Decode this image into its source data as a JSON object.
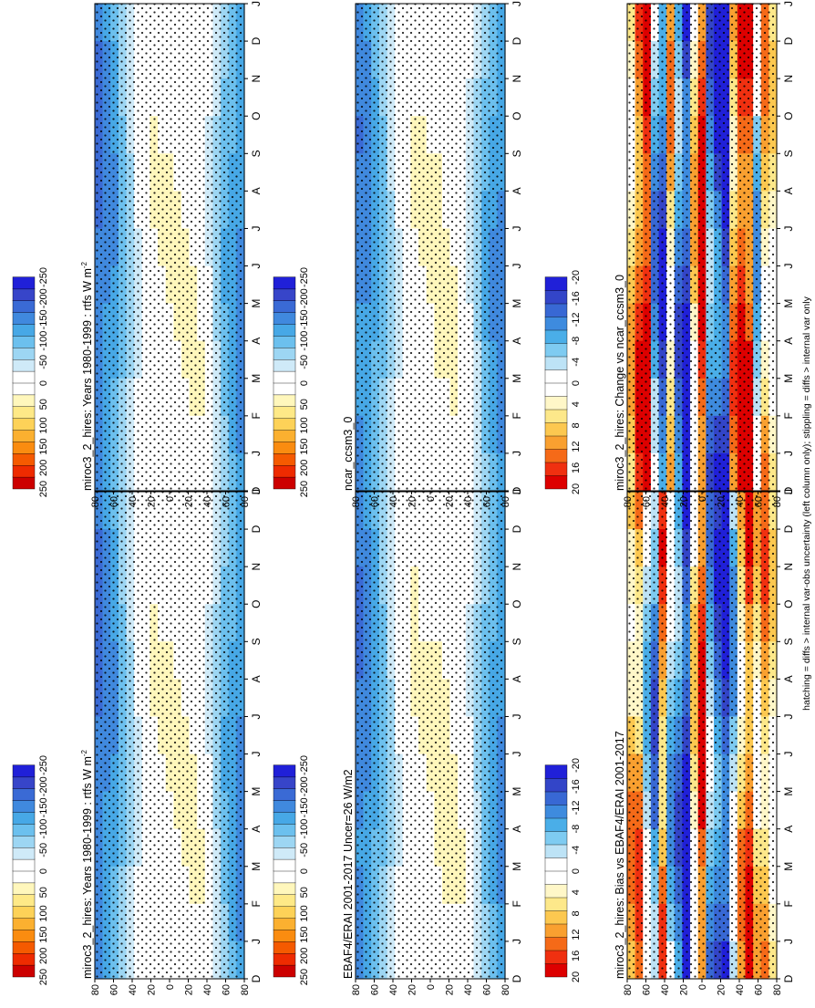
{
  "figure": {
    "footnote": "hatching = diffs > internal var-obs uncertainty (left column only); stippling = diffs > internal var only"
  },
  "chart_data": [
    {
      "type": "heatmap",
      "title": "miroc3_2_hires: Years 1980-1999 : rtfs W m",
      "title_sup": "-2",
      "months": [
        "D",
        "J",
        "F",
        "M",
        "A",
        "M",
        "J",
        "J",
        "A",
        "S",
        "O",
        "N",
        "D",
        "J"
      ],
      "lat_ticks": [
        "80",
        "60",
        "40",
        "20",
        "0",
        "20",
        "40",
        "60",
        "80"
      ],
      "colorbar": {
        "labels": [
          "250",
          "200",
          "150",
          "100",
          "50",
          "0",
          "-50",
          "-100",
          "-150",
          "-200",
          "-250"
        ],
        "colors": [
          "#cc0000",
          "#ee2b00",
          "#f55a00",
          "#fa8c10",
          "#fbb030",
          "#fdd258",
          "#fee987",
          "#fff7bc",
          "#ffffff",
          "#ffffff",
          "#cfeaf8",
          "#9dd6f3",
          "#6cc0ee",
          "#47a8e6",
          "#4089de",
          "#3a6ad5",
          "#3745c9",
          "#2020d8"
        ]
      },
      "latitude_profile": [
        -160,
        -145,
        -125,
        -90,
        -55,
        -20,
        5,
        15,
        15,
        18,
        22,
        22,
        18,
        12,
        -20,
        -55,
        -95,
        -120,
        -140
      ]
    },
    {
      "type": "heatmap",
      "title": "miroc3_2_hires: Years 1980-1999 : rtfs W m",
      "title_sup": "-2",
      "months": [
        "D",
        "J",
        "F",
        "M",
        "A",
        "M",
        "J",
        "J",
        "A",
        "S",
        "O",
        "N",
        "D",
        "J"
      ],
      "lat_ticks": [
        "80",
        "60",
        "40",
        "20",
        "0",
        "20",
        "40",
        "60",
        "80"
      ],
      "colorbar": {
        "labels": [
          "250",
          "200",
          "150",
          "100",
          "50",
          "0",
          "-50",
          "-100",
          "-150",
          "-200",
          "-250"
        ],
        "colors": [
          "#cc0000",
          "#ee2b00",
          "#f55a00",
          "#fa8c10",
          "#fbb030",
          "#fdd258",
          "#fee987",
          "#fff7bc",
          "#ffffff",
          "#ffffff",
          "#cfeaf8",
          "#9dd6f3",
          "#6cc0ee",
          "#47a8e6",
          "#4089de",
          "#3a6ad5",
          "#3745c9",
          "#2020d8"
        ]
      },
      "latitude_profile": [
        -160,
        -145,
        -125,
        -90,
        -55,
        -20,
        5,
        15,
        15,
        18,
        22,
        22,
        18,
        12,
        -20,
        -55,
        -95,
        -120,
        -140
      ]
    },
    {
      "type": "heatmap",
      "title": "EBAF4/ERAI 2001-2017 Uncer=26 W/m2",
      "title_sup": "",
      "months": [
        "D",
        "J",
        "F",
        "M",
        "A",
        "M",
        "J",
        "J",
        "A",
        "S",
        "O",
        "N",
        "D",
        "J"
      ],
      "lat_ticks": [
        "80",
        "60",
        "40",
        "20",
        "0",
        "20",
        "40",
        "60",
        "80"
      ],
      "colorbar": {
        "labels": [
          "250",
          "200",
          "150",
          "100",
          "50",
          "0",
          "-50",
          "-100",
          "-150",
          "-200",
          "-250"
        ],
        "colors": [
          "#cc0000",
          "#ee2b00",
          "#f55a00",
          "#fa8c10",
          "#fbb030",
          "#fdd258",
          "#fee987",
          "#fff7bc",
          "#ffffff",
          "#ffffff",
          "#cfeaf8",
          "#9dd6f3",
          "#6cc0ee",
          "#47a8e6",
          "#4089de",
          "#3a6ad5",
          "#3745c9",
          "#2020d8"
        ]
      },
      "latitude_profile": [
        -155,
        -140,
        -120,
        -85,
        -50,
        -15,
        8,
        18,
        16,
        20,
        25,
        24,
        20,
        14,
        -15,
        -50,
        -90,
        -115,
        -135
      ]
    },
    {
      "type": "heatmap",
      "title": "ncar_ccsm3_0",
      "title_sup": "",
      "months": [
        "D",
        "J",
        "F",
        "M",
        "A",
        "M",
        "J",
        "J",
        "A",
        "S",
        "O",
        "N",
        "D",
        "J"
      ],
      "lat_ticks": [
        "80",
        "60",
        "40",
        "20",
        "0",
        "20",
        "40",
        "60",
        "80"
      ],
      "colorbar": {
        "labels": [
          "250",
          "200",
          "150",
          "100",
          "50",
          "0",
          "-50",
          "-100",
          "-150",
          "-200",
          "-250"
        ],
        "colors": [
          "#cc0000",
          "#ee2b00",
          "#f55a00",
          "#fa8c10",
          "#fbb030",
          "#fdd258",
          "#fee987",
          "#fff7bc",
          "#ffffff",
          "#ffffff",
          "#cfeaf8",
          "#9dd6f3",
          "#6cc0ee",
          "#47a8e6",
          "#4089de",
          "#3a6ad5",
          "#3745c9",
          "#2020d8"
        ]
      },
      "latitude_profile": [
        -150,
        -140,
        -118,
        -88,
        -52,
        -18,
        6,
        16,
        18,
        20,
        24,
        20,
        16,
        10,
        -25,
        -60,
        -100,
        -125,
        -145
      ]
    },
    {
      "type": "heatmap",
      "title": "miroc3_2_hires: Bias vs EBAF4/ERAI 2001-2017",
      "title_sup": "",
      "months": [
        "D",
        "J",
        "F",
        "M",
        "A",
        "M",
        "J",
        "J",
        "A",
        "S",
        "O",
        "N",
        "D",
        "J"
      ],
      "lat_ticks": [
        "80",
        "60",
        "40",
        "20",
        "0",
        "20",
        "40",
        "60",
        "80"
      ],
      "colorbar": {
        "labels": [
          "20",
          "16",
          "12",
          "8",
          "4",
          "0",
          "-4",
          "-8",
          "-12",
          "-16",
          "-20"
        ],
        "colors": [
          "#dd0000",
          "#f03010",
          "#f56a18",
          "#f9a030",
          "#fcc850",
          "#fde88a",
          "#fff7c8",
          "#ffffff",
          "#ffffff",
          "#bde3f6",
          "#7ecbf1",
          "#4aaee8",
          "#3e8bde",
          "#3868d4",
          "#3345c8",
          "#2020d8"
        ]
      },
      "latitude_profile": [
        8,
        10,
        -4,
        -10,
        12,
        -6,
        -10,
        -18,
        4,
        16,
        -8,
        -12,
        -16,
        -6,
        8,
        14,
        6,
        10,
        4
      ]
    },
    {
      "type": "heatmap",
      "title": "miroc3_2_hires: Change vs ncar_ccsm3_0",
      "title_sup": "",
      "months": [
        "D",
        "J",
        "F",
        "M",
        "A",
        "M",
        "J",
        "J",
        "A",
        "S",
        "O",
        "N",
        "D",
        "J"
      ],
      "lat_ticks": [
        "80",
        "60",
        "40",
        "20",
        "0",
        "20",
        "40",
        "60",
        "80"
      ],
      "colorbar": {
        "labels": [
          "20",
          "16",
          "12",
          "8",
          "4",
          "0",
          "-4",
          "-8",
          "-12",
          "-16",
          "-20"
        ],
        "colors": [
          "#dd0000",
          "#f03010",
          "#f56a18",
          "#f9a030",
          "#fcc850",
          "#fde88a",
          "#fff7c8",
          "#ffffff",
          "#ffffff",
          "#bde3f6",
          "#7ecbf1",
          "#4aaee8",
          "#3e8bde",
          "#3868d4",
          "#3345c8",
          "#2020d8"
        ]
      },
      "latitude_profile": [
        6,
        14,
        20,
        -8,
        -14,
        8,
        -10,
        -16,
        6,
        18,
        -10,
        -14,
        -18,
        10,
        18,
        16,
        -6,
        8,
        4
      ]
    }
  ]
}
